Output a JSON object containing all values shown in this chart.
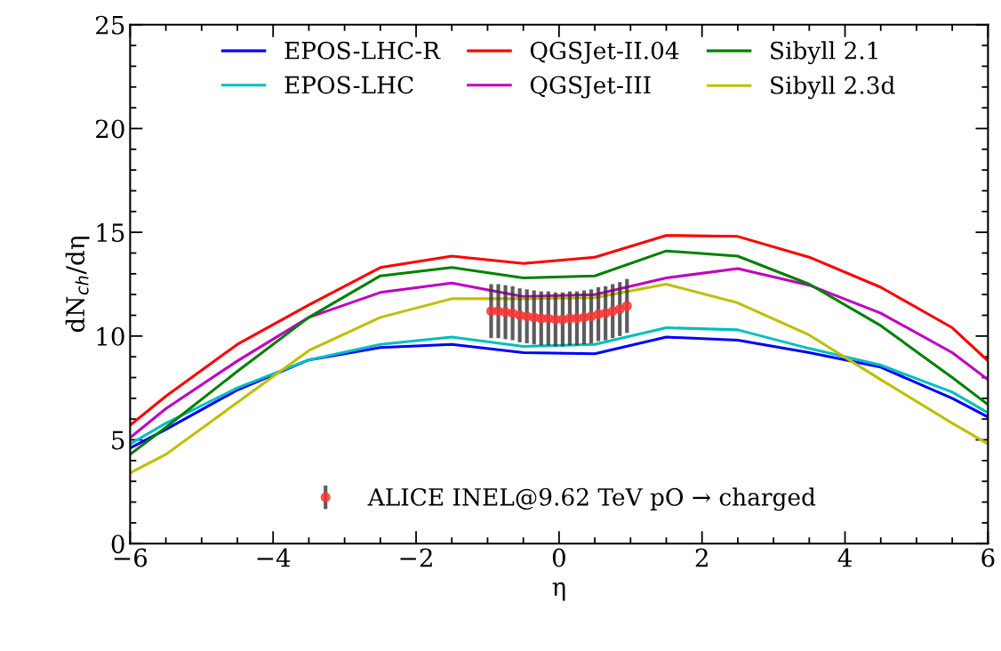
{
  "chart_data": {
    "type": "line",
    "xlabel": "η",
    "ylabel": "dN$_{ch}$/dη",
    "x": [
      -6,
      -5.5,
      -4.5,
      -3.5,
      -2.5,
      -1.5,
      -0.5,
      0.5,
      1.5,
      2.5,
      3.5,
      4.5,
      5.5,
      6
    ],
    "xlim": [
      -6,
      6
    ],
    "xticks": [
      {
        "value": -6,
        "label": "−6"
      },
      {
        "value": -4,
        "label": "−4"
      },
      {
        "value": -2,
        "label": "−2"
      },
      0,
      2,
      4,
      6
    ],
    "ylim": [
      0,
      25
    ],
    "yticks": [
      0,
      5,
      10,
      15,
      20,
      25
    ],
    "legend": "top",
    "grid": false,
    "marker": "none",
    "line_style": "solid",
    "series": [
      {
        "name": "EPOS-LHC-R",
        "color": "#0000ff",
        "values": [
          4.6,
          5.5,
          7.4,
          8.85,
          9.45,
          9.6,
          9.2,
          9.15,
          9.95,
          9.8,
          9.2,
          8.5,
          7.0,
          6.1
        ]
      },
      {
        "name": "EPOS-LHC",
        "color": "#00bfbf",
        "values": [
          4.8,
          5.8,
          7.5,
          8.85,
          9.6,
          9.95,
          9.5,
          9.6,
          10.4,
          10.3,
          9.4,
          8.6,
          7.3,
          6.3
        ]
      },
      {
        "name": "QGSJet-II.04",
        "color": "#ff0000",
        "values": [
          5.7,
          7.1,
          9.6,
          11.5,
          13.3,
          13.85,
          13.5,
          13.8,
          14.85,
          14.8,
          13.8,
          12.35,
          10.4,
          8.8
        ]
      },
      {
        "name": "QGSJet-III",
        "color": "#bf00bf",
        "values": [
          5.1,
          6.5,
          8.8,
          10.9,
          12.1,
          12.55,
          11.9,
          12.0,
          12.8,
          13.25,
          12.45,
          11.1,
          9.2,
          7.9
        ]
      },
      {
        "name": "Sibyll 2.1",
        "color": "#008000",
        "values": [
          4.3,
          5.6,
          8.3,
          10.9,
          12.9,
          13.3,
          12.8,
          12.9,
          14.1,
          13.85,
          12.5,
          10.5,
          8.0,
          6.7
        ]
      },
      {
        "name": "Sibyll 2.3d",
        "color": "#bfbf00",
        "values": [
          3.4,
          4.3,
          6.8,
          9.3,
          10.9,
          11.8,
          11.8,
          11.85,
          12.5,
          11.6,
          10.05,
          7.9,
          5.8,
          4.8
        ]
      },
      {
        "name": "ALICE INEL@9.62 TeV pO → charged",
        "type": "scatter",
        "marker": "circle",
        "color": "#ff3333",
        "x": [
          -0.95,
          -0.85,
          -0.75,
          -0.65,
          -0.55,
          -0.45,
          -0.35,
          -0.25,
          -0.15,
          -0.05,
          0.05,
          0.15,
          0.25,
          0.35,
          0.45,
          0.55,
          0.65,
          0.75,
          0.85,
          0.95
        ],
        "values": [
          11.2,
          11.2,
          11.15,
          11.1,
          11.0,
          10.95,
          10.9,
          10.85,
          10.85,
          10.8,
          10.8,
          10.85,
          10.85,
          10.9,
          10.95,
          11.05,
          11.1,
          11.2,
          11.3,
          11.45
        ],
        "errors": [
          1.3,
          1.3,
          1.3,
          1.3,
          1.3,
          1.3,
          1.3,
          1.3,
          1.3,
          1.3,
          1.3,
          1.3,
          1.3,
          1.3,
          1.3,
          1.3,
          1.3,
          1.3,
          1.3,
          1.3
        ]
      }
    ]
  }
}
